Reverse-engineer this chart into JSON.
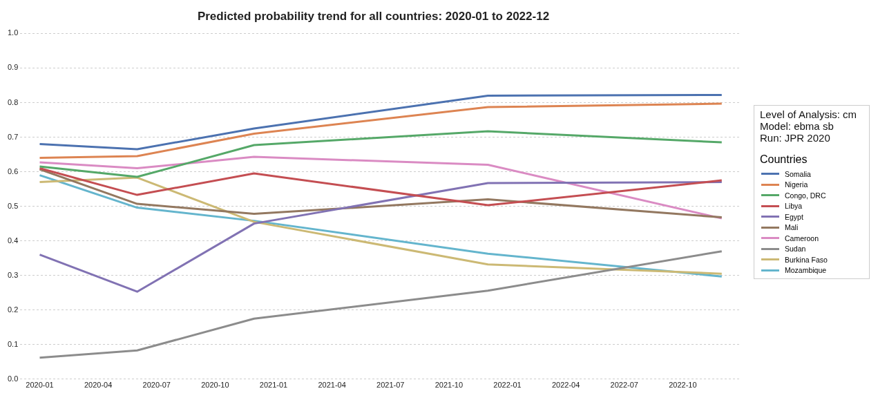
{
  "chart_data": {
    "type": "line",
    "title": "Predicted probability trend for all countries: 2020-01 to 2022-12",
    "x": [
      "2020-01",
      "2020-06",
      "2020-12",
      "2021-12",
      "2022-12"
    ],
    "series": [
      {
        "name": "Somalia",
        "color": "#4c72b0",
        "values": [
          0.68,
          0.665,
          0.725,
          0.82,
          0.822
        ]
      },
      {
        "name": "Nigeria",
        "color": "#dd8452",
        "values": [
          0.64,
          0.645,
          0.71,
          0.787,
          0.797
        ]
      },
      {
        "name": "Congo, DRC",
        "color": "#55a868",
        "values": [
          0.615,
          0.585,
          0.677,
          0.717,
          0.685
        ]
      },
      {
        "name": "Libya",
        "color": "#c44e52",
        "values": [
          0.61,
          0.533,
          0.595,
          0.503,
          0.575
        ]
      },
      {
        "name": "Egypt",
        "color": "#8172b3",
        "values": [
          0.36,
          0.253,
          0.45,
          0.567,
          0.57
        ]
      },
      {
        "name": "Mali",
        "color": "#937860",
        "values": [
          0.607,
          0.507,
          0.478,
          0.52,
          0.468
        ]
      },
      {
        "name": "Cameroon",
        "color": "#da8bc3",
        "values": [
          0.627,
          0.61,
          0.643,
          0.62,
          0.465
        ]
      },
      {
        "name": "Sudan",
        "color": "#8c8c8c",
        "values": [
          0.062,
          0.083,
          0.175,
          0.256,
          0.37
        ]
      },
      {
        "name": "Burkina Faso",
        "color": "#ccb974",
        "values": [
          0.57,
          0.583,
          0.455,
          0.332,
          0.305
        ]
      },
      {
        "name": "Mozambique",
        "color": "#64b5cd",
        "values": [
          0.59,
          0.496,
          0.458,
          0.363,
          0.297
        ]
      }
    ],
    "xlim": [
      "2019-12",
      "2023-01"
    ],
    "xticks": [
      "2020-01",
      "2020-04",
      "2020-07",
      "2020-10",
      "2021-01",
      "2021-04",
      "2021-07",
      "2021-10",
      "2022-01",
      "2022-04",
      "2022-07",
      "2022-10"
    ],
    "ylim": [
      0,
      1
    ],
    "yticks": [
      {
        "value": 0,
        "label": "0.0"
      },
      0.1,
      0.2,
      0.3,
      0.4,
      0.5,
      0.6,
      0.7,
      0.8,
      0.9,
      {
        "value": 1,
        "label": "1.0"
      }
    ],
    "grid": "y",
    "legend": "right",
    "legend_title": "Countries",
    "marker": "none",
    "line_style": "solid",
    "annotations": [
      "Level of Analysis: cm",
      "Model: ebma sb",
      "Run: JPR 2020"
    ]
  }
}
